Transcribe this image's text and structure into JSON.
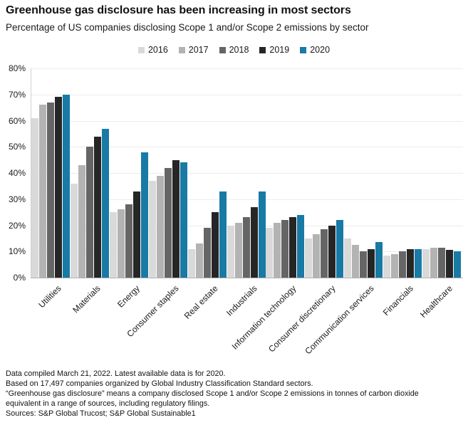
{
  "title": "Greenhouse gas disclosure has been increasing in most sectors",
  "subtitle": "Percentage of US companies disclosing Scope 1 and/or Scope 2 emissions by sector",
  "colors": {
    "y2016": "#d9d9d9",
    "y2017": "#b3b3b3",
    "y2018": "#656565",
    "y2019": "#262626",
    "y2020": "#187aa5",
    "gridline": "#ececec",
    "axis": "#b3b3b3"
  },
  "chart_data": {
    "type": "bar",
    "title": "Greenhouse gas disclosure has been increasing in most sectors",
    "subtitle": "Percentage of US companies disclosing Scope 1 and/or Scope 2 emissions by sector",
    "categories": [
      "Utilities",
      "Materials",
      "Energy",
      "Consumer staples",
      "Real estate",
      "Industrials",
      "Information technology",
      "Consumer discretionary",
      "Communication services",
      "Financials",
      "Healthcare"
    ],
    "series": [
      {
        "name": "2016",
        "color": "#d9d9d9",
        "values": [
          61,
          36,
          25,
          37,
          11,
          20,
          19,
          15,
          15,
          8.5,
          11
        ]
      },
      {
        "name": "2017",
        "color": "#b3b3b3",
        "values": [
          66,
          43,
          26,
          39,
          13,
          21,
          21,
          16.5,
          12.5,
          9,
          11.5
        ]
      },
      {
        "name": "2018",
        "color": "#656565",
        "values": [
          67,
          50,
          28,
          42,
          19,
          23,
          22,
          18.5,
          10,
          10,
          11.5
        ]
      },
      {
        "name": "2019",
        "color": "#262626",
        "values": [
          69,
          54,
          33,
          45,
          25,
          27,
          23,
          20,
          11,
          11,
          10.5
        ]
      },
      {
        "name": "2020",
        "color": "#187aa5",
        "values": [
          70,
          57,
          48,
          44,
          33,
          33,
          24,
          22,
          13.5,
          11,
          10
        ]
      }
    ],
    "ylim": [
      0,
      80
    ],
    "y_tick_step": 10,
    "y_tick_labels": [
      "0%",
      "10%",
      "20%",
      "30%",
      "40%",
      "50%",
      "60%",
      "70%",
      "80%"
    ],
    "xlabel": "",
    "ylabel": "",
    "grid": "horizontal",
    "legend_position": "top-center"
  },
  "footer": {
    "lines": [
      "Data compiled March 21, 2022. Latest available data is for 2020.",
      "Based on 17,497 companies organized by Global Industry Classification Standard sectors.",
      "“Greenhouse gas disclosure” means a company disclosed Scope 1 and/or Scope 2 emissions in tonnes of carbon dioxide",
      "equivalent in a range of sources, including regulatory filings.",
      "Sources: S&P Global Trucost; S&P Global Sustainable1"
    ]
  }
}
